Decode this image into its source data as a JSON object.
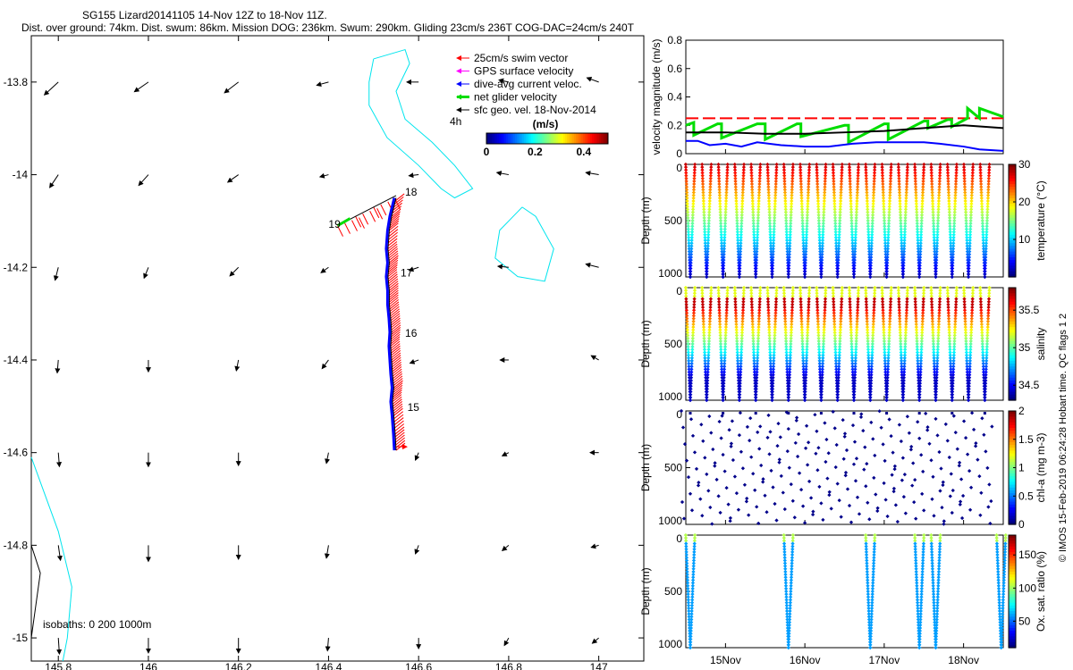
{
  "header": {
    "line1": "SG155 Lizard20141105 14-Nov 12Z to 18-Nov 11Z.",
    "line2": "Dist. over ground: 74km. Dist. swum: 86km. Mission DOG: 236km. Swum: 290km. Gliding 23cm/s 236T COG-DAC=24cm/s 240T"
  },
  "side_note": "© IMOS 15-Feb-2019 06:24:28 Hobart time. QC flags 1  2",
  "chart_data": [
    {
      "type": "scatter",
      "id": "map",
      "xlim": [
        145.74,
        147.1
      ],
      "ylim": [
        -15.05,
        -13.7
      ],
      "xticks": [
        "145.8",
        "146",
        "146.2",
        "146.4",
        "146.6",
        "146.8",
        "147"
      ],
      "yticks": [
        "-13.8",
        "-14",
        "-14.2",
        "-14.4",
        "-14.6",
        "-14.8",
        "-15"
      ],
      "legend": [
        {
          "label": "25cm/s swim vector",
          "color": "#ff0000"
        },
        {
          "label": "GPS surface velocity",
          "color": "#ff00ff"
        },
        {
          "label": "dive-avg current veloc.",
          "color": "#0000ff"
        },
        {
          "label": "net glider velocity",
          "color": "#00dd00"
        },
        {
          "label": "sfc geo. vel. 18-Nov-2014",
          "color": "#000000"
        }
      ],
      "legend_position": "top-right",
      "colorbar": {
        "title": "(m/s)",
        "ticks": [
          "0",
          "0.2",
          "0.4"
        ],
        "range": [
          0,
          0.5
        ]
      },
      "four_h_label": "4h",
      "isobath_label": "isobaths: 0   200  1000m",
      "day_labels": [
        {
          "text": "18",
          "lon": 146.57,
          "lat": -14.045
        },
        {
          "text": "19",
          "lon": 146.4,
          "lat": -14.115
        },
        {
          "text": "17",
          "lon": 146.56,
          "lat": -14.22
        },
        {
          "text": "16",
          "lon": 146.57,
          "lat": -14.35
        },
        {
          "text": "15",
          "lon": 146.575,
          "lat": -14.51
        }
      ],
      "track": [
        [
          146.55,
          -14.595
        ],
        [
          146.548,
          -14.56
        ],
        [
          146.545,
          -14.52
        ],
        [
          146.542,
          -14.49
        ],
        [
          146.545,
          -14.46
        ],
        [
          146.542,
          -14.43
        ],
        [
          146.54,
          -14.4
        ],
        [
          146.538,
          -14.37
        ],
        [
          146.54,
          -14.34
        ],
        [
          146.538,
          -14.31
        ],
        [
          146.535,
          -14.28
        ],
        [
          146.535,
          -14.25
        ],
        [
          146.532,
          -14.22
        ],
        [
          146.535,
          -14.19
        ],
        [
          146.532,
          -14.16
        ],
        [
          146.535,
          -14.12
        ],
        [
          146.54,
          -14.09
        ],
        [
          146.55,
          -14.05
        ]
      ],
      "track_tail": [
        [
          146.55,
          -14.045
        ],
        [
          146.5,
          -14.07
        ],
        [
          146.46,
          -14.09
        ],
        [
          146.42,
          -14.11
        ]
      ],
      "coast_contours": [
        [
          [
            146.5,
            -13.75
          ],
          [
            146.57,
            -13.73
          ],
          [
            146.58,
            -13.76
          ],
          [
            146.55,
            -13.82
          ],
          [
            146.57,
            -13.88
          ],
          [
            146.63,
            -13.93
          ],
          [
            146.68,
            -13.98
          ],
          [
            146.72,
            -14.03
          ],
          [
            146.68,
            -14.05
          ],
          [
            146.65,
            -14.03
          ],
          [
            146.6,
            -13.98
          ],
          [
            146.53,
            -13.92
          ],
          [
            146.49,
            -13.85
          ],
          [
            146.49,
            -13.8
          ],
          [
            146.5,
            -13.75
          ]
        ],
        [
          [
            146.83,
            -14.07
          ],
          [
            146.86,
            -14.09
          ],
          [
            146.9,
            -14.16
          ],
          [
            146.88,
            -14.23
          ],
          [
            146.82,
            -14.22
          ],
          [
            146.77,
            -14.18
          ],
          [
            146.78,
            -14.12
          ],
          [
            146.82,
            -14.08
          ],
          [
            146.83,
            -14.07
          ]
        ]
      ],
      "shore_line": [
        [
          145.74,
          -14.61
        ],
        [
          145.8,
          -14.77
        ],
        [
          145.83,
          -14.89
        ],
        [
          145.82,
          -15.0
        ],
        [
          145.81,
          -15.05
        ]
      ],
      "shore_black": [
        [
          145.74,
          -14.8
        ],
        [
          145.76,
          -14.86
        ],
        [
          145.74,
          -15.0
        ]
      ],
      "sfc_vel_grid_lon": [
        145.8,
        146,
        146.2,
        146.4,
        146.6,
        146.8,
        147
      ],
      "sfc_vel_grid_lat": [
        -13.8,
        -14,
        -14.2,
        -14.4,
        -14.6,
        -14.8,
        -15
      ],
      "sfc_vel_pattern": [
        [
          [
            -0.13,
            -0.12
          ],
          [
            -0.13,
            -0.09
          ],
          [
            -0.13,
            -0.1
          ],
          [
            -0.11,
            -0.03
          ],
          [
            -0.11,
            0.0
          ],
          [
            -0.09,
            0.02
          ],
          [
            -0.11,
            0.04
          ]
        ],
        [
          [
            -0.08,
            -0.12
          ],
          [
            -0.09,
            -0.1
          ],
          [
            -0.1,
            -0.07
          ],
          [
            -0.08,
            -0.02
          ],
          [
            -0.09,
            -0.01
          ],
          [
            -0.11,
            0.02
          ],
          [
            -0.12,
            0.02
          ]
        ],
        [
          [
            -0.03,
            -0.12
          ],
          [
            -0.04,
            -0.1
          ],
          [
            -0.08,
            -0.08
          ],
          [
            -0.07,
            -0.05
          ],
          [
            -0.09,
            -0.03
          ],
          [
            -0.1,
            0.01
          ],
          [
            -0.12,
            0.03
          ]
        ],
        [
          [
            -0.01,
            -0.12
          ],
          [
            0.0,
            -0.11
          ],
          [
            -0.02,
            -0.1
          ],
          [
            -0.06,
            -0.08
          ],
          [
            -0.08,
            -0.03
          ],
          [
            -0.08,
            0.0
          ],
          [
            -0.07,
            0.04
          ]
        ],
        [
          [
            0.01,
            -0.13
          ],
          [
            0.0,
            -0.13
          ],
          [
            0.0,
            -0.12
          ],
          [
            -0.02,
            -0.1
          ],
          [
            -0.03,
            -0.07
          ],
          [
            -0.06,
            -0.03
          ],
          [
            -0.08,
            0.0
          ]
        ],
        [
          [
            0.02,
            -0.14
          ],
          [
            0.0,
            -0.15
          ],
          [
            0.0,
            -0.13
          ],
          [
            -0.02,
            -0.12
          ],
          [
            -0.03,
            -0.08
          ],
          [
            -0.06,
            -0.05
          ],
          [
            -0.07,
            -0.02
          ]
        ],
        [
          [
            0.01,
            -0.15
          ],
          [
            0.0,
            -0.14
          ],
          [
            0.0,
            -0.14
          ],
          [
            -0.01,
            -0.12
          ],
          [
            0.0,
            -0.1
          ],
          [
            -0.04,
            -0.07
          ],
          [
            -0.06,
            -0.05
          ]
        ]
      ]
    },
    {
      "type": "line",
      "id": "velocity",
      "ylabel": "velocity magnitude (m/s)",
      "ylim": [
        0,
        0.8
      ],
      "yticks": [
        "0",
        "0.2",
        "0.4",
        "0.6",
        "0.8"
      ],
      "xlim": [
        0,
        4.0
      ],
      "series": [
        {
          "color": "#ff0000",
          "style": "dash",
          "x": [
            0,
            4.0
          ],
          "y": [
            0.25,
            0.25
          ]
        },
        {
          "color": "#00dd00",
          "x": [
            0,
            0.1,
            0.1,
            0.4,
            0.45,
            0.45,
            0.9,
            1.0,
            1.0,
            1.4,
            1.45,
            1.45,
            2.0,
            2.05,
            2.05,
            2.5,
            2.55,
            2.55,
            3.0,
            3.05,
            3.05,
            3.3,
            3.35,
            3.35,
            3.55,
            3.55,
            3.7,
            3.7,
            4.0
          ],
          "y": [
            0.2,
            0.22,
            0.13,
            0.21,
            0.21,
            0.11,
            0.21,
            0.21,
            0.1,
            0.21,
            0.21,
            0.12,
            0.2,
            0.2,
            0.08,
            0.21,
            0.21,
            0.1,
            0.23,
            0.23,
            0.18,
            0.24,
            0.24,
            0.19,
            0.25,
            0.32,
            0.25,
            0.32,
            0.26
          ]
        },
        {
          "color": "#000000",
          "x": [
            0,
            0.5,
            1.0,
            1.5,
            2.0,
            2.5,
            3.0,
            3.5,
            4.0
          ],
          "y": [
            0.15,
            0.15,
            0.14,
            0.14,
            0.15,
            0.16,
            0.18,
            0.2,
            0.18
          ]
        },
        {
          "color": "#0000ff",
          "x": [
            0,
            0.15,
            0.3,
            0.5,
            0.7,
            0.9,
            1.2,
            1.5,
            1.8,
            2.1,
            2.4,
            2.7,
            3.0,
            3.2,
            3.5,
            3.7,
            4.0
          ],
          "y": [
            0.09,
            0.09,
            0.06,
            0.07,
            0.05,
            0.08,
            0.06,
            0.05,
            0.05,
            0.07,
            0.08,
            0.08,
            0.08,
            0.07,
            0.05,
            0.03,
            0.02
          ]
        }
      ]
    },
    {
      "type": "scatter",
      "id": "temperature",
      "ylabel": "Depth (m)",
      "ylim": [
        1000,
        0
      ],
      "yticks": [
        "0",
        "500",
        "1000"
      ],
      "colorbar_label": "temperature (°C)",
      "colorbar_ticks": [
        "10",
        "20",
        "30"
      ],
      "crange": [
        0,
        30
      ],
      "profile": "full",
      "yo_count": 19,
      "values": "depth-dependent temperature"
    },
    {
      "type": "scatter",
      "id": "salinity",
      "ylabel": "Depth (m)",
      "ylim": [
        1000,
        0
      ],
      "yticks": [
        "0",
        "500",
        "1000"
      ],
      "colorbar_label": "salinity",
      "colorbar_ticks": [
        "34.5",
        "35",
        "35.5"
      ],
      "crange": [
        34.3,
        35.8
      ],
      "profile": "full",
      "yo_count": 19,
      "values": "depth-dependent salinity"
    },
    {
      "type": "scatter",
      "id": "chla",
      "ylabel": "Depth (m)",
      "ylim": [
        1000,
        0
      ],
      "yticks": [
        "0",
        "500",
        "1000"
      ],
      "colorbar_label": "chl-a (mg m-3)",
      "colorbar_ticks": [
        "0",
        "0.5",
        "1",
        "1.5",
        "2"
      ],
      "crange": [
        0,
        2
      ],
      "profile": "sparse",
      "yo_count": 19,
      "values": "near zero chlorophyll"
    },
    {
      "type": "scatter",
      "id": "oxygen",
      "ylabel": "Depth (m)",
      "ylim": [
        1000,
        0
      ],
      "yticks": [
        "0",
        "500",
        "1000"
      ],
      "colorbar_label": "Ox. sat. ratio (%)",
      "colorbar_ticks": [
        "50",
        "100",
        "150"
      ],
      "crange": [
        10,
        180
      ],
      "profile": "partial",
      "yo_indices": [
        0,
        6,
        11,
        14,
        15,
        19
      ],
      "values": "oxygen saturation"
    },
    {
      "type": "axis",
      "id": "time_axis",
      "xticks": [
        "15Nov",
        "16Nov",
        "17Nov",
        "18Nov"
      ],
      "xtick_positions_days": [
        0.5,
        1.5,
        2.5,
        3.5
      ]
    }
  ]
}
